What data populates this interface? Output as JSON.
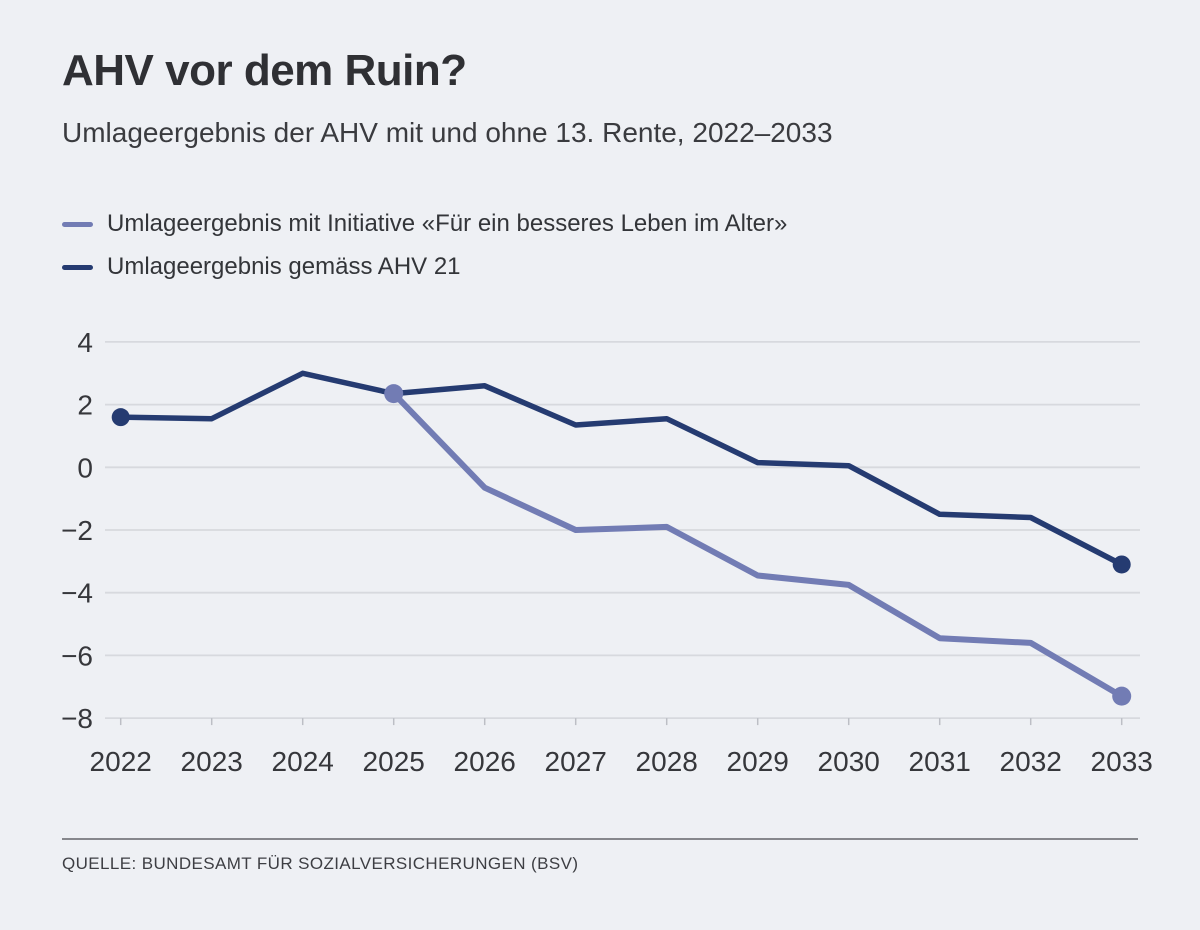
{
  "page": {
    "background": "#eef0f4",
    "title": "AHV vor dem Ruin?",
    "subtitle": "Umlageergebnis der AHV mit und ohne 13. Rente, 2022–2033",
    "source": "QUELLE: BUNDESAMT FÜR SOZIALVERSICHERUNGEN (BSV)"
  },
  "chart_data": {
    "type": "line",
    "title": "AHV vor dem Ruin?",
    "subtitle": "Umlageergebnis der AHV mit und ohne 13. Rente, 2022–2033",
    "x": [
      2022,
      2023,
      2024,
      2025,
      2026,
      2027,
      2028,
      2029,
      2030,
      2031,
      2032,
      2033
    ],
    "series": [
      {
        "id": "initiative",
        "name": "Umlageergebnis mit Initiative «Für ein besseres Leben im Alter»",
        "color": "#727CB4",
        "values": [
          null,
          null,
          null,
          2.35,
          -0.65,
          -2.0,
          -1.9,
          -3.45,
          -3.75,
          -5.45,
          -5.6,
          -7.3
        ]
      },
      {
        "id": "ahv21",
        "name": "Umlageergebnis gemäss AHV 21",
        "color": "#253B71",
        "values": [
          1.6,
          1.55,
          3.0,
          2.35,
          2.6,
          1.35,
          1.55,
          0.15,
          0.05,
          -1.5,
          -1.6,
          -3.1
        ]
      }
    ],
    "ylim": [
      -8,
      4
    ],
    "yticks": [
      4,
      2,
      0,
      -2,
      -4,
      -6,
      -8
    ],
    "grid": "horizontal-only",
    "legend_position": "top-left",
    "xlabel": "",
    "ylabel": ""
  }
}
